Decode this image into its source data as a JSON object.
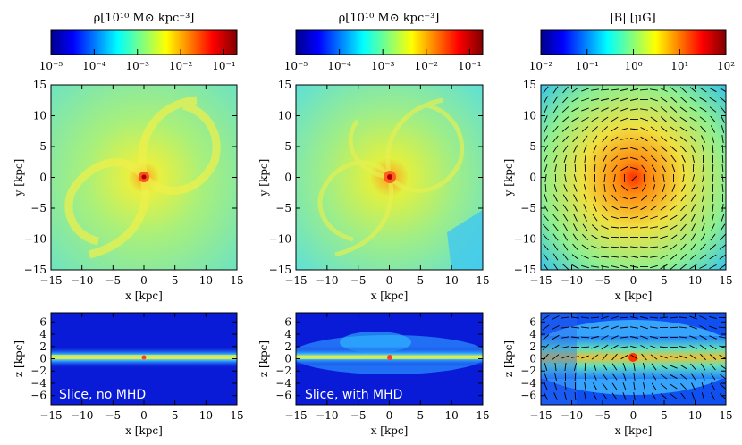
{
  "colorbars": [
    {
      "title": "ρ[10¹⁰ M⊙ kpc⁻³]",
      "ticks": [
        "10⁻⁵",
        "10⁻⁴",
        "10⁻³",
        "10⁻²",
        "10⁻¹"
      ],
      "scale": "log",
      "range": [
        1e-05,
        0.2
      ]
    },
    {
      "title": "ρ[10¹⁰ M⊙ kpc⁻³]",
      "ticks": [
        "10⁻⁵",
        "10⁻⁴",
        "10⁻³",
        "10⁻²",
        "10⁻¹"
      ],
      "scale": "log",
      "range": [
        1e-05,
        0.2
      ]
    },
    {
      "title": "|B| [μG]",
      "ticks": [
        "10⁻²",
        "10⁻¹",
        "10⁰",
        "10¹",
        "10²"
      ],
      "scale": "log",
      "range": [
        0.01,
        100.0
      ]
    }
  ],
  "panels": {
    "xlabel": "x [kpc]",
    "face_on_ylabel": "y [kpc]",
    "edge_on_ylabel": "z [kpc]",
    "xticks": [
      "−15",
      "−10",
      "−5",
      "0",
      "5",
      "10",
      "15"
    ],
    "face_on_yticks": [
      "15",
      "10",
      "5",
      "0",
      "−5",
      "−10",
      "−15"
    ],
    "edge_on_yticks": [
      "6",
      "4",
      "2",
      "0",
      "−2",
      "−4",
      "−6"
    ],
    "annotations": [
      "Slice, no MHD",
      "Slice, with MHD"
    ]
  },
  "chart_data": [
    {
      "type": "heatmap",
      "title": "ρ[10¹⁰ M⊙ kpc⁻³]",
      "xlabel": "x [kpc]",
      "ylabel": "y [kpc]",
      "xlim": [
        -15,
        15
      ],
      "ylim": [
        -15,
        15
      ],
      "colormap": "jet",
      "scale": "log",
      "crange": [
        1e-05,
        0.2
      ]
    },
    {
      "type": "heatmap",
      "title": "ρ[10¹⁰ M⊙ kpc⁻³]",
      "xlabel": "x [kpc]",
      "ylabel": "y [kpc]",
      "xlim": [
        -15,
        15
      ],
      "ylim": [
        -15,
        15
      ],
      "colormap": "jet",
      "scale": "log",
      "crange": [
        1e-05,
        0.2
      ]
    },
    {
      "type": "heatmap",
      "title": "|B| [μG]",
      "xlabel": "x [kpc]",
      "ylabel": "y [kpc]",
      "xlim": [
        -15,
        15
      ],
      "ylim": [
        -15,
        15
      ],
      "colormap": "jet",
      "scale": "log",
      "crange": [
        0.01,
        100.0
      ],
      "overlay": "magnetic field direction vectors"
    },
    {
      "type": "heatmap",
      "annotation": "Slice, no MHD",
      "xlabel": "x [kpc]",
      "ylabel": "z [kpc]",
      "xlim": [
        -15,
        15
      ],
      "ylim": [
        -7.5,
        7.5
      ],
      "colormap": "jet"
    },
    {
      "type": "heatmap",
      "annotation": "Slice, with MHD",
      "xlabel": "x [kpc]",
      "ylabel": "z [kpc]",
      "xlim": [
        -15,
        15
      ],
      "ylim": [
        -7.5,
        7.5
      ],
      "colormap": "jet"
    },
    {
      "type": "heatmap",
      "xlabel": "x [kpc]",
      "ylabel": "z [kpc]",
      "xlim": [
        -15,
        15
      ],
      "ylim": [
        -7.5,
        7.5
      ],
      "colormap": "jet",
      "overlay": "magnetic field direction vectors"
    }
  ],
  "colors": {
    "jet_dark": "#00008b",
    "jet_blue": "#0000ff",
    "jet_cyan": "#00ffff",
    "jet_yellow": "#ffff00",
    "jet_red": "#ff0000",
    "jet_darkred": "#800000"
  }
}
